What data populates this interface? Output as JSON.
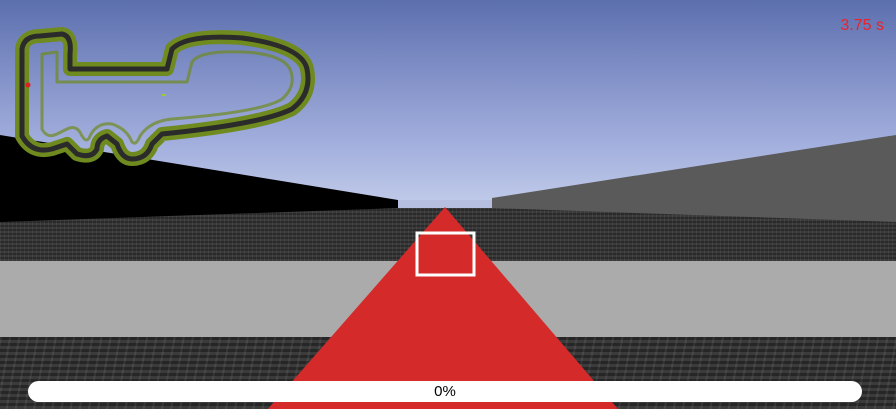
{
  "hud": {
    "timer_text": "3.75 s",
    "timer_color": "#e8232a",
    "progress_label": "0%",
    "progress_value": 0
  },
  "scene": {
    "sky_color": "#6f80bd",
    "left_wall_color": "#000000",
    "right_wall_color": "#5a5a5a",
    "road_band_color": "#ababab",
    "track_direction_marker_color": "#d42a2a",
    "target_box_color": "#ffffff"
  },
  "minimap": {
    "track_outline_color": "#6f8a1e",
    "track_surface_color": "#2b2b2b",
    "player_marker_color": "#e02020"
  }
}
